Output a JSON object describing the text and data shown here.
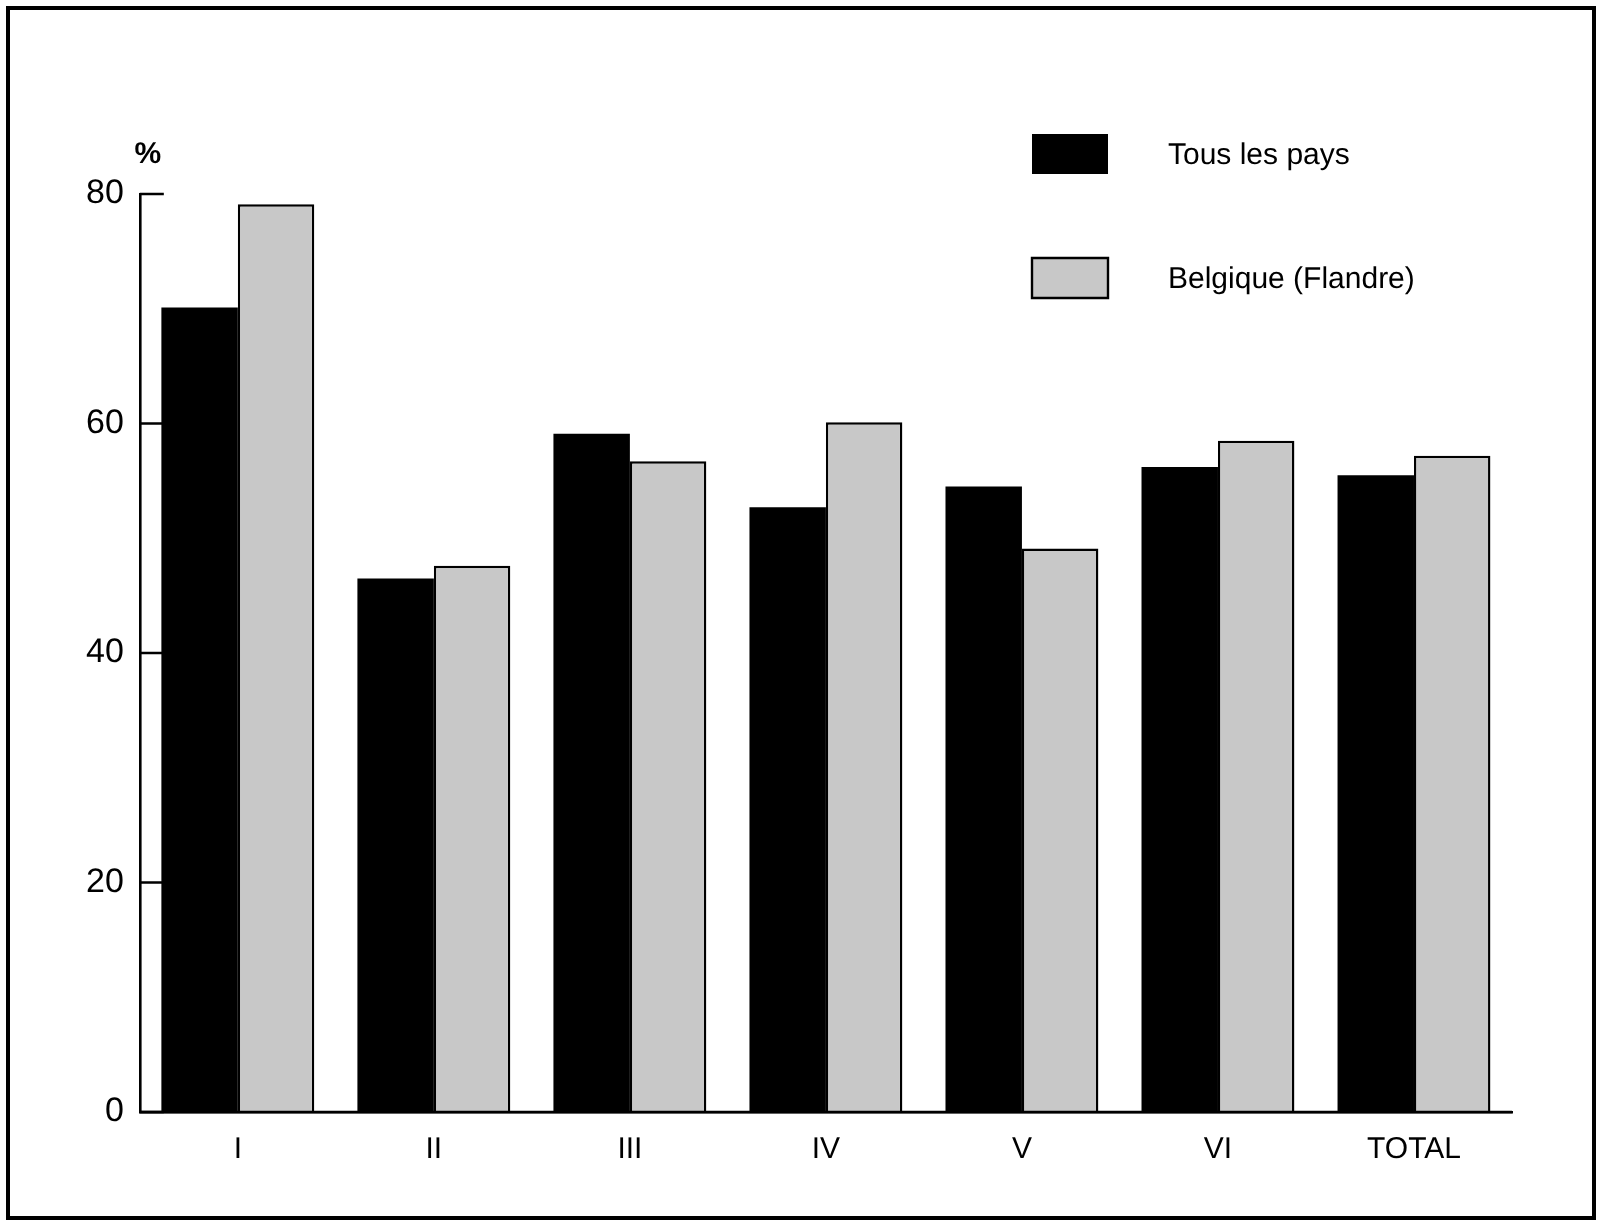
{
  "chart_data": {
    "type": "bar",
    "ylabel": "%",
    "categories": [
      "I",
      "II",
      "III",
      "IV",
      "V",
      "VI",
      "TOTAL"
    ],
    "series": [
      {
        "name": "Tous les pays",
        "color": "#000000",
        "values": [
          70.1,
          46.5,
          59.1,
          52.7,
          54.5,
          56.2,
          55.5
        ]
      },
      {
        "name": "Belgique (Flandre)",
        "color": "#c8c8c8",
        "values": [
          79.1,
          47.6,
          56.7,
          60.1,
          49.1,
          58.5,
          57.2
        ]
      }
    ],
    "ylim": [
      0,
      80
    ],
    "yticks": [
      0,
      20,
      40,
      60,
      80
    ],
    "grid": false,
    "legend": "top right"
  }
}
